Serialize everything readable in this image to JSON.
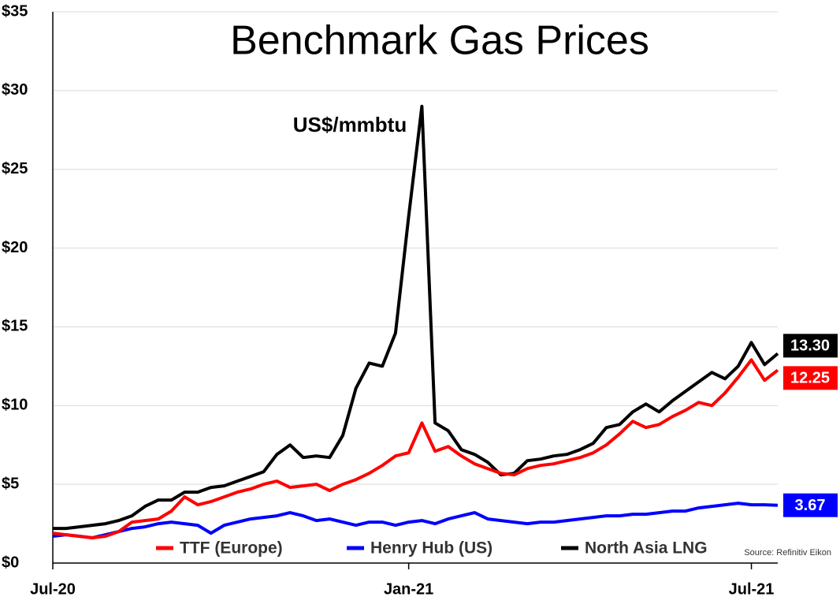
{
  "chart_data": {
    "type": "line",
    "title": "Benchmark Gas Prices",
    "annotation": "US$/mmbtu",
    "source": "Source: Refinitiv Eikon",
    "categories": [
      "Jul-20",
      null,
      null,
      null,
      null,
      null,
      null,
      null,
      null,
      null,
      null,
      null,
      null,
      null,
      null,
      null,
      null,
      null,
      null,
      null,
      null,
      null,
      null,
      null,
      null,
      null,
      null,
      "Jan-21",
      null,
      null,
      null,
      null,
      null,
      null,
      null,
      null,
      null,
      null,
      null,
      null,
      null,
      null,
      null,
      null,
      null,
      null,
      null,
      null,
      null,
      null,
      null,
      null,
      null,
      "Jul-21",
      null,
      null
    ],
    "series": [
      {
        "name": "TTF (Europe)",
        "color": "#ff0000",
        "values": [
          1.9,
          1.8,
          1.7,
          1.6,
          1.7,
          2.0,
          2.6,
          2.7,
          2.8,
          3.3,
          4.2,
          3.7,
          3.9,
          4.2,
          4.5,
          4.7,
          5.0,
          5.2,
          4.8,
          4.9,
          5.0,
          4.6,
          5.0,
          5.3,
          5.7,
          6.2,
          6.8,
          7.0,
          8.9,
          7.1,
          7.4,
          6.8,
          6.3,
          6.0,
          5.7,
          5.6,
          6.0,
          6.2,
          6.3,
          6.5,
          6.7,
          7.0,
          7.5,
          8.2,
          9.0,
          8.6,
          8.8,
          9.3,
          9.7,
          10.2,
          10.0,
          10.8,
          11.8,
          12.9,
          11.6,
          12.25
        ]
      },
      {
        "name": "Henry Hub (US)",
        "color": "#0000ff",
        "values": [
          1.7,
          1.8,
          1.7,
          1.6,
          1.8,
          2.0,
          2.2,
          2.3,
          2.5,
          2.6,
          2.5,
          2.4,
          1.9,
          2.4,
          2.6,
          2.8,
          2.9,
          3.0,
          3.2,
          3.0,
          2.7,
          2.8,
          2.6,
          2.4,
          2.6,
          2.6,
          2.4,
          2.6,
          2.7,
          2.5,
          2.8,
          3.0,
          3.2,
          2.8,
          2.7,
          2.6,
          2.5,
          2.6,
          2.6,
          2.7,
          2.8,
          2.9,
          3.0,
          3.0,
          3.1,
          3.1,
          3.2,
          3.3,
          3.3,
          3.5,
          3.6,
          3.7,
          3.8,
          3.7,
          3.7,
          3.67
        ]
      },
      {
        "name": "North Asia LNG",
        "color": "#000000",
        "values": [
          2.2,
          2.2,
          2.3,
          2.4,
          2.5,
          2.7,
          3.0,
          3.6,
          4.0,
          4.0,
          4.5,
          4.5,
          4.8,
          4.9,
          5.2,
          5.5,
          5.8,
          6.9,
          7.5,
          6.7,
          6.8,
          6.7,
          8.1,
          11.1,
          12.7,
          12.5,
          14.6,
          22.0,
          29.0,
          8.9,
          8.4,
          7.2,
          6.9,
          6.4,
          5.6,
          5.7,
          6.5,
          6.6,
          6.8,
          6.9,
          7.2,
          7.6,
          8.6,
          8.8,
          9.6,
          10.1,
          9.6,
          10.3,
          10.9,
          11.5,
          12.1,
          11.7,
          12.5,
          14.0,
          12.6,
          13.3
        ],
        "value_labels": [
          null,
          null,
          null,
          null,
          null,
          null,
          null,
          null,
          null,
          null,
          null,
          null,
          null,
          null,
          null,
          null,
          null,
          null,
          null,
          null,
          null,
          null,
          null,
          null,
          null,
          null,
          null,
          null,
          null,
          null,
          null,
          null,
          null,
          null,
          null,
          null,
          null,
          null,
          null,
          null,
          null,
          null,
          null,
          null,
          null,
          null,
          null,
          null,
          null,
          null,
          null,
          null,
          null,
          null,
          null,
          "13.30"
        ]
      }
    ],
    "ylim": [
      0,
      35
    ],
    "yticks": [
      {
        "value": 0,
        "label": "$0"
      },
      {
        "value": 5,
        "label": "$5"
      },
      {
        "value": 10,
        "label": "$10"
      },
      {
        "value": 15,
        "label": "$15"
      },
      {
        "value": 20,
        "label": "$20"
      },
      {
        "value": 25,
        "label": "$25"
      },
      {
        "value": 30,
        "label": "$30"
      },
      {
        "value": 35,
        "label": "$35"
      }
    ],
    "grid": true
  }
}
